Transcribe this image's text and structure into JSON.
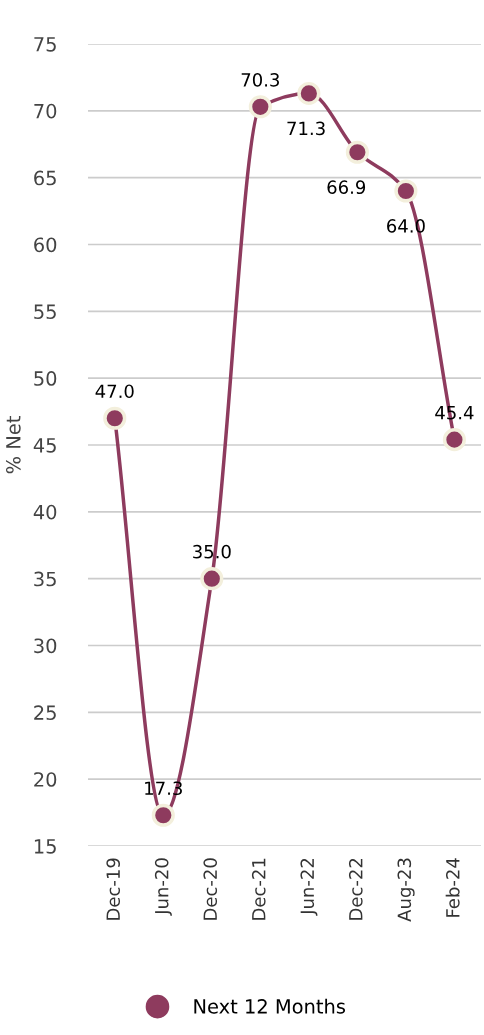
{
  "chart_data": {
    "type": "line",
    "ylabel": "% Net",
    "categories": [
      "Dec-19",
      "Jun-20",
      "Dec-20",
      "Dec-21",
      "Jun-22",
      "Dec-22",
      "Aug-23",
      "Feb-24"
    ],
    "series": [
      {
        "name": "Next 12 Months",
        "color": "#8e3b5e",
        "values": [
          47.0,
          17.3,
          35.0,
          70.3,
          71.3,
          66.9,
          64.0,
          45.4
        ],
        "value_labels": [
          "47.0",
          "17.3",
          "35.0",
          "70.3",
          "71.3",
          "66.9",
          "64.0",
          "45.4"
        ]
      }
    ],
    "ylim": [
      15,
      75
    ],
    "yticks": [
      15,
      20,
      25,
      30,
      35,
      40,
      45,
      50,
      55,
      60,
      65,
      70,
      75
    ],
    "grid": "y",
    "legend": "bottom",
    "marker": "circle",
    "line_style": "solid"
  }
}
